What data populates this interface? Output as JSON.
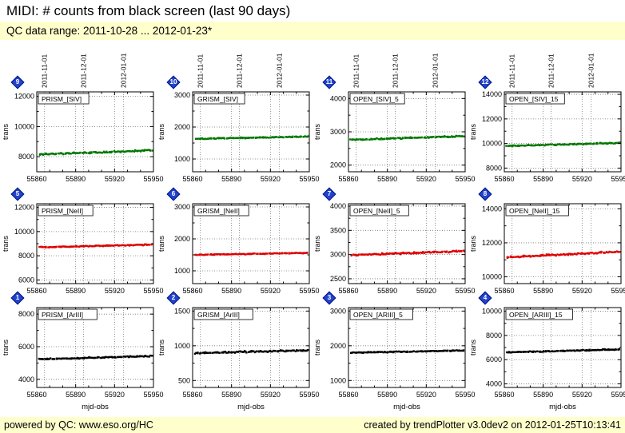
{
  "page": {
    "title": "MIDI: # counts from black screen (last 90 days)",
    "qc_range": "QC data range: 2011-10-28 ... 2012-01-23*"
  },
  "footer": {
    "powered_prefix": "powered by QC: ",
    "powered_link": "www.eso.org/HC",
    "created": "created by trendPlotter v3.0dev2 on 2012-01-25T10:13:41"
  },
  "colors": {
    "band_background": "#ffffcc",
    "badge_blue": "#2244cc",
    "siv_series": "#007700",
    "neii_series": "#dd0000",
    "ariii_series": "#000000"
  },
  "axes": {
    "x_label": "mjd-obs",
    "y_label": "trans",
    "xlim": [
      55860,
      55950
    ],
    "xticks": [
      55860,
      55890,
      55920,
      55950
    ],
    "date_ticks": [
      {
        "mjd": 55866,
        "label": "2011-11-01"
      },
      {
        "mjd": 55896,
        "label": "2011-12-01"
      },
      {
        "mjd": 55927,
        "label": "2012-01-01"
      }
    ],
    "n_points": 110,
    "x_start": 55862,
    "x_end": 55949
  },
  "chart_data": [
    {
      "type": "scatter",
      "badge": 9,
      "label": "PRISM_[SIV]",
      "color": "#007700",
      "ylim": [
        7000,
        12300
      ],
      "yticks": [
        8000,
        10000,
        12000
      ],
      "y_start": 8150,
      "y_end": 8420,
      "y_jitter": 55,
      "show_date_axis": true,
      "xlabel": ""
    },
    {
      "type": "scatter",
      "badge": 10,
      "label": "GRISM_[SIV]",
      "color": "#007700",
      "ylim": [
        600,
        3100
      ],
      "yticks": [
        1000,
        2000,
        3000
      ],
      "y_start": 1630,
      "y_end": 1700,
      "y_jitter": 18,
      "show_date_axis": true,
      "xlabel": ""
    },
    {
      "type": "scatter",
      "badge": 11,
      "label": "OPEN_[SIV]_5",
      "color": "#007700",
      "ylim": [
        1800,
        4200
      ],
      "yticks": [
        2000,
        3000,
        4000
      ],
      "y_start": 2760,
      "y_end": 2870,
      "y_jitter": 22,
      "show_date_axis": true,
      "xlabel": ""
    },
    {
      "type": "scatter",
      "badge": 12,
      "label": "OPEN_[SIV]_15",
      "color": "#007700",
      "ylim": [
        7700,
        14200
      ],
      "yticks": [
        8000,
        10000,
        12000,
        14000
      ],
      "y_start": 9800,
      "y_end": 10050,
      "y_jitter": 55,
      "show_date_axis": true,
      "xlabel": ""
    },
    {
      "type": "scatter",
      "badge": 5,
      "label": "PRISM_[NeII]",
      "color": "#dd0000",
      "ylim": [
        5700,
        12300
      ],
      "yticks": [
        6000,
        8000,
        10000,
        12000
      ],
      "y_start": 8700,
      "y_end": 8920,
      "y_jitter": 50,
      "show_date_axis": false,
      "xlabel": ""
    },
    {
      "type": "scatter",
      "badge": 6,
      "label": "GRISM_[NeII]",
      "color": "#dd0000",
      "ylim": [
        600,
        3100
      ],
      "yticks": [
        1000,
        2000,
        3000
      ],
      "y_start": 1500,
      "y_end": 1560,
      "y_jitter": 15,
      "show_date_axis": false,
      "xlabel": ""
    },
    {
      "type": "scatter",
      "badge": 7,
      "label": "OPEN_[NeII]_5",
      "color": "#dd0000",
      "ylim": [
        2400,
        4050
      ],
      "yticks": [
        2500,
        3000,
        3500,
        4000
      ],
      "y_start": 2990,
      "y_end": 3070,
      "y_jitter": 20,
      "show_date_axis": false,
      "xlabel": ""
    },
    {
      "type": "scatter",
      "badge": 8,
      "label": "OPEN_[NeII]_15",
      "color": "#dd0000",
      "ylim": [
        9600,
        14300
      ],
      "yticks": [
        10000,
        12000,
        14000
      ],
      "y_start": 11150,
      "y_end": 11480,
      "y_jitter": 55,
      "show_date_axis": false,
      "xlabel": ""
    },
    {
      "type": "scatter",
      "badge": 1,
      "label": "PRISM_[ArIII]",
      "color": "#000000",
      "ylim": [
        3500,
        8400
      ],
      "yticks": [
        4000,
        6000,
        8000
      ],
      "y_start": 5230,
      "y_end": 5430,
      "y_jitter": 45,
      "show_date_axis": false,
      "xlabel": "mjd-obs"
    },
    {
      "type": "scatter",
      "badge": 2,
      "label": "GRISM_[ArIII]",
      "color": "#000000",
      "ylim": [
        400,
        1550
      ],
      "yticks": [
        500,
        1000,
        1500
      ],
      "y_start": 895,
      "y_end": 935,
      "y_jitter": 12,
      "show_date_axis": false,
      "xlabel": "mjd-obs"
    },
    {
      "type": "scatter",
      "badge": 3,
      "label": "OPEN_[ARIII]_5",
      "color": "#000000",
      "ylim": [
        800,
        3100
      ],
      "yticks": [
        1000,
        2000,
        3000
      ],
      "y_start": 1800,
      "y_end": 1865,
      "y_jitter": 16,
      "show_date_axis": false,
      "xlabel": "mjd-obs"
    },
    {
      "type": "scatter",
      "badge": 4,
      "label": "OPEN_[ARIII]_15",
      "color": "#000000",
      "ylim": [
        3700,
        10300
      ],
      "yticks": [
        4000,
        6000,
        8000,
        10000
      ],
      "y_start": 6600,
      "y_end": 6850,
      "y_jitter": 50,
      "show_date_axis": false,
      "xlabel": "mjd-obs"
    }
  ]
}
